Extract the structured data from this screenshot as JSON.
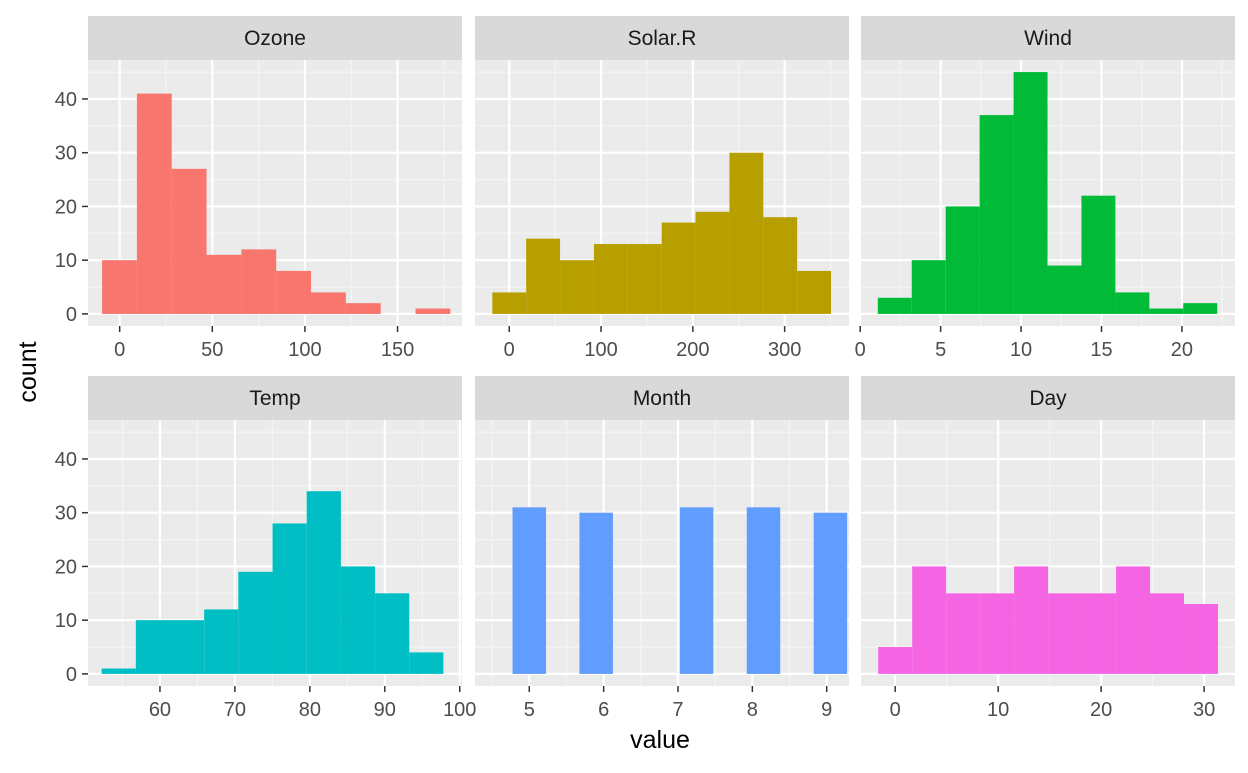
{
  "chart_data": {
    "type": "bar",
    "xlabel": "value",
    "ylabel": "count",
    "ylim": [
      -2.25,
      47.25
    ],
    "yticks": [
      0,
      10,
      20,
      30,
      40
    ],
    "grid": true,
    "colors": {
      "panel_background": "#ebebeb",
      "strip_background": "#d9d9d9",
      "grid_major": "#ffffff",
      "grid_minor": "#f5f5f5"
    },
    "panels": [
      {
        "name": "Ozone",
        "color": "#F8766D",
        "xlim": [
          -17.1,
          184.8
        ],
        "xticks": [
          0,
          50,
          100,
          150
        ],
        "xticklabels": [
          "0",
          "50",
          "100",
          "150"
        ],
        "bin_width": 18.8,
        "bins": [
          {
            "x": -0.1,
            "count": 10
          },
          {
            "x": 18.7,
            "count": 41
          },
          {
            "x": 37.5,
            "count": 27
          },
          {
            "x": 56.3,
            "count": 11
          },
          {
            "x": 75.1,
            "count": 12
          },
          {
            "x": 93.9,
            "count": 8
          },
          {
            "x": 112.7,
            "count": 4
          },
          {
            "x": 131.5,
            "count": 2
          },
          {
            "x": 150.3,
            "count": 0
          },
          {
            "x": 169.1,
            "count": 1
          }
        ]
      },
      {
        "name": "Solar.R",
        "color": "#B79F00",
        "xlim": [
          -37.3,
          370.1
        ],
        "xticks": [
          0,
          100,
          200,
          300
        ],
        "xticklabels": [
          "0",
          "100",
          "200",
          "300"
        ],
        "bin_width": 36.9,
        "bins": [
          {
            "x": 0,
            "count": 4
          },
          {
            "x": 36.9,
            "count": 14
          },
          {
            "x": 73.8,
            "count": 10
          },
          {
            "x": 110.7,
            "count": 13
          },
          {
            "x": 147.6,
            "count": 13
          },
          {
            "x": 184.5,
            "count": 17
          },
          {
            "x": 221.4,
            "count": 19
          },
          {
            "x": 258.3,
            "count": 30
          },
          {
            "x": 295.2,
            "count": 18
          },
          {
            "x": 332.1,
            "count": 8
          }
        ]
      },
      {
        "name": "Wind",
        "color": "#00BA38",
        "xlim": [
          0.05,
          23.3
        ],
        "xticks": [
          0,
          5,
          10,
          15,
          20
        ],
        "xticklabels": [
          "0",
          "5",
          "10",
          "15",
          "20"
        ],
        "bin_width": 2.11,
        "bins": [
          {
            "x": 2.15,
            "count": 3
          },
          {
            "x": 4.26,
            "count": 10
          },
          {
            "x": 6.37,
            "count": 20
          },
          {
            "x": 8.48,
            "count": 37
          },
          {
            "x": 10.59,
            "count": 45
          },
          {
            "x": 12.7,
            "count": 9
          },
          {
            "x": 14.81,
            "count": 22
          },
          {
            "x": 16.92,
            "count": 4
          },
          {
            "x": 19.03,
            "count": 1
          },
          {
            "x": 21.14,
            "count": 2
          }
        ]
      },
      {
        "name": "Temp",
        "color": "#00BFC4",
        "xlim": [
          50.4,
          100.3
        ],
        "xticks": [
          60,
          70,
          80,
          90,
          100
        ],
        "xticklabels": [
          "60",
          "70",
          "80",
          "90",
          "100"
        ],
        "bin_width": 4.56,
        "bins": [
          {
            "x": 54.5,
            "count": 1
          },
          {
            "x": 59.06,
            "count": 10
          },
          {
            "x": 63.62,
            "count": 10
          },
          {
            "x": 68.18,
            "count": 12
          },
          {
            "x": 72.74,
            "count": 19
          },
          {
            "x": 77.3,
            "count": 28
          },
          {
            "x": 81.86,
            "count": 34
          },
          {
            "x": 86.42,
            "count": 20
          },
          {
            "x": 90.98,
            "count": 15
          },
          {
            "x": 95.54,
            "count": 4
          }
        ]
      },
      {
        "name": "Month",
        "color": "#619CFF",
        "xlim": [
          4.27,
          9.3
        ],
        "xticks": [
          5,
          6,
          7,
          8,
          9
        ],
        "xticklabels": [
          "5",
          "6",
          "7",
          "8",
          "9"
        ],
        "bin_width": 0.45,
        "bins": [
          {
            "x": 5.0,
            "count": 31
          },
          {
            "x": 5.45,
            "count": 0
          },
          {
            "x": 5.9,
            "count": 30
          },
          {
            "x": 6.35,
            "count": 0
          },
          {
            "x": 6.8,
            "count": 0
          },
          {
            "x": 7.25,
            "count": 31
          },
          {
            "x": 7.7,
            "count": 0
          },
          {
            "x": 8.15,
            "count": 31
          },
          {
            "x": 8.6,
            "count": 0
          },
          {
            "x": 9.05,
            "count": 30
          }
        ]
      },
      {
        "name": "Day",
        "color": "#F564E3",
        "xlim": [
          -3.32,
          33.0
        ],
        "xticks": [
          0,
          10,
          20,
          30
        ],
        "xticklabels": [
          "0",
          "10",
          "20",
          "30"
        ],
        "bin_width": 3.3,
        "bins": [
          {
            "x": 0,
            "count": 5
          },
          {
            "x": 3.3,
            "count": 20
          },
          {
            "x": 6.6,
            "count": 15
          },
          {
            "x": 9.9,
            "count": 15
          },
          {
            "x": 13.2,
            "count": 20
          },
          {
            "x": 16.5,
            "count": 15
          },
          {
            "x": 19.8,
            "count": 15
          },
          {
            "x": 23.1,
            "count": 20
          },
          {
            "x": 26.4,
            "count": 15
          },
          {
            "x": 29.7,
            "count": 13
          }
        ]
      }
    ]
  }
}
